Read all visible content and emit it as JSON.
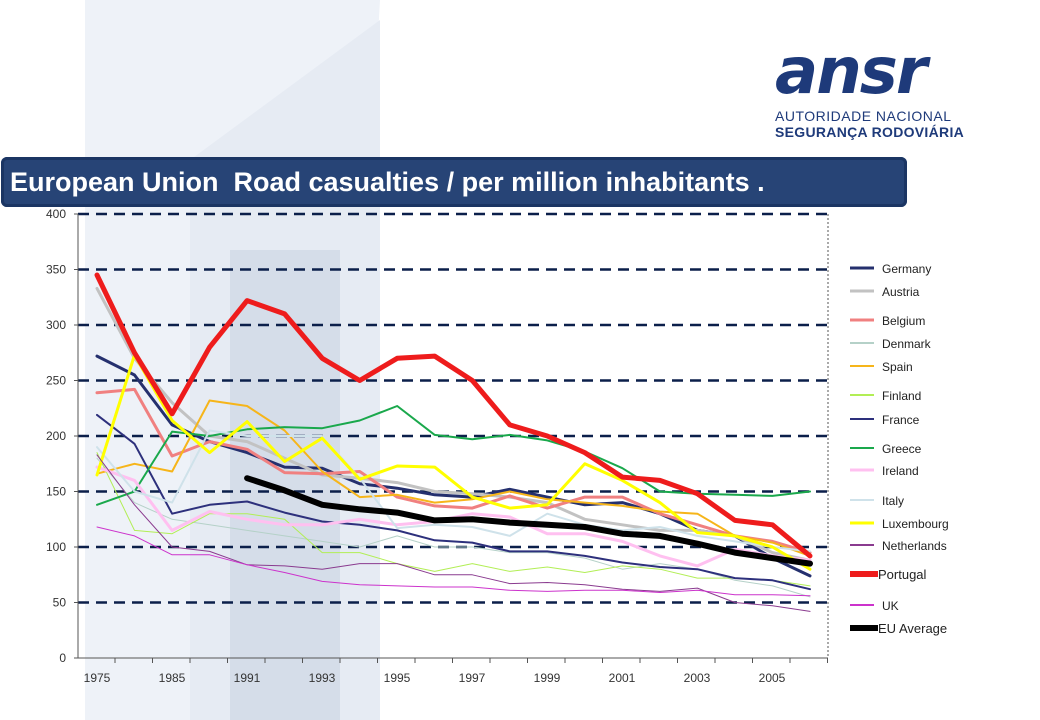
{
  "logo": {
    "mark": "ansr",
    "line1": "AUTORIDADE NACIONAL",
    "line2": "SEGURANÇA RODOVIÁRIA"
  },
  "colors": {
    "title_bar": "#274476",
    "grid_dash": "#0b1f4a"
  },
  "chart_data": {
    "type": "line",
    "title": "European Union  Road casualties / per million inhabitants .",
    "xlabel": "",
    "ylabel": "",
    "ylim": [
      0,
      400
    ],
    "yticks": [
      0,
      50,
      100,
      150,
      200,
      250,
      300,
      350,
      400
    ],
    "x": [
      1975,
      1980,
      1985,
      1990,
      1991,
      1992,
      1993,
      1994,
      1995,
      1996,
      1997,
      1998,
      1999,
      2000,
      2001,
      2002,
      2003,
      2004,
      2005,
      2006
    ],
    "xtick_labels": [
      "1975",
      "1985",
      "1991",
      "1993",
      "1995",
      "1997",
      "1999",
      "2001",
      "2003",
      "2005"
    ],
    "grid": "dashed horizontal",
    "legend_position": "right",
    "series": [
      {
        "name": "Germany",
        "color": "#25306e",
        "width": 3,
        "values": [
          272,
          255,
          210,
          195,
          185,
          172,
          171,
          157,
          153,
          147,
          145,
          152,
          145,
          138,
          140,
          130,
          115,
          110,
          90,
          74
        ]
      },
      {
        "name": "Austria",
        "color": "#c2c2c2",
        "width": 3,
        "values": [
          333,
          270,
          230,
          200,
          195,
          180,
          165,
          162,
          158,
          150,
          148,
          145,
          140,
          125,
          120,
          115,
          115,
          110,
          95,
          88
        ]
      },
      {
        "name": "Belgium",
        "color": "#f08080",
        "width": 3,
        "values": [
          239,
          242,
          182,
          195,
          188,
          167,
          166,
          168,
          145,
          137,
          135,
          146,
          135,
          145,
          145,
          130,
          120,
          110,
          105,
          95
        ]
      },
      {
        "name": "Denmark",
        "color": "#b5d1c8",
        "width": 1,
        "values": [
          180,
          140,
          125,
          120,
          115,
          110,
          105,
          100,
          110,
          100,
          100,
          95,
          95,
          90,
          80,
          85,
          80,
          70,
          65,
          55
        ]
      },
      {
        "name": "Spain",
        "color": "#f6b51a",
        "width": 2,
        "values": [
          166,
          175,
          168,
          232,
          227,
          205,
          168,
          145,
          147,
          140,
          143,
          150,
          143,
          140,
          137,
          132,
          130,
          110,
          104,
          92
        ]
      },
      {
        "name": "Finland",
        "color": "#b2ee55",
        "width": 1,
        "values": [
          185,
          115,
          112,
          130,
          130,
          125,
          95,
          95,
          85,
          78,
          85,
          78,
          82,
          77,
          83,
          80,
          72,
          72,
          70,
          65
        ]
      },
      {
        "name": "France",
        "color": "#2d307c",
        "width": 2,
        "values": [
          219,
          193,
          130,
          138,
          141,
          131,
          123,
          120,
          115,
          106,
          104,
          96,
          96,
          92,
          86,
          82,
          80,
          72,
          70,
          62
        ]
      },
      {
        "name": "Greece",
        "color": "#1aa84c",
        "width": 2,
        "values": [
          138,
          150,
          204,
          200,
          206,
          208,
          207,
          214,
          227,
          201,
          197,
          201,
          196,
          186,
          171,
          150,
          148,
          147,
          146,
          150
        ]
      },
      {
        "name": "Ireland",
        "color": "#ffc0f0",
        "width": 3,
        "values": [
          172,
          160,
          115,
          132,
          125,
          120,
          120,
          125,
          120,
          123,
          130,
          127,
          112,
          112,
          105,
          92,
          83,
          98,
          92,
          88
        ]
      },
      {
        "name": "Italy",
        "color": "#cfe2ea",
        "width": 2,
        "values": [
          190,
          150,
          140,
          205,
          200,
          200,
          200,
          162,
          117,
          120,
          118,
          110,
          130,
          120,
          115,
          118,
          110,
          105,
          100,
          96
        ]
      },
      {
        "name": "Luxembourg",
        "color": "#ffff00",
        "width": 3,
        "values": [
          165,
          273,
          214,
          185,
          213,
          177,
          198,
          161,
          173,
          172,
          145,
          135,
          138,
          175,
          160,
          140,
          113,
          110,
          100,
          80
        ]
      },
      {
        "name": "Netherlands",
        "color": "#8a3b8f",
        "width": 1,
        "values": [
          183,
          138,
          100,
          96,
          84,
          83,
          80,
          85,
          85,
          75,
          75,
          67,
          68,
          66,
          62,
          60,
          63,
          50,
          47,
          42
        ]
      },
      {
        "name": "Portugal",
        "color": "#ee1c1c",
        "width": 5,
        "values": [
          345,
          275,
          220,
          280,
          322,
          310,
          270,
          250,
          270,
          272,
          250,
          210,
          200,
          185,
          163,
          160,
          148,
          124,
          120,
          92
        ]
      },
      {
        "name": "UK",
        "color": "#cc33cc",
        "width": 1,
        "values": [
          118,
          110,
          93,
          93,
          84,
          77,
          69,
          66,
          65,
          64,
          64,
          61,
          60,
          61,
          61,
          59,
          61,
          57,
          57,
          56
        ]
      },
      {
        "name": "EU Average",
        "color": "#000000",
        "width": 6,
        "start_index": 4,
        "values": [
          null,
          null,
          null,
          null,
          162,
          151,
          138,
          134,
          131,
          124,
          125,
          122,
          120,
          118,
          112,
          110,
          103,
          95,
          90,
          85
        ]
      }
    ]
  }
}
